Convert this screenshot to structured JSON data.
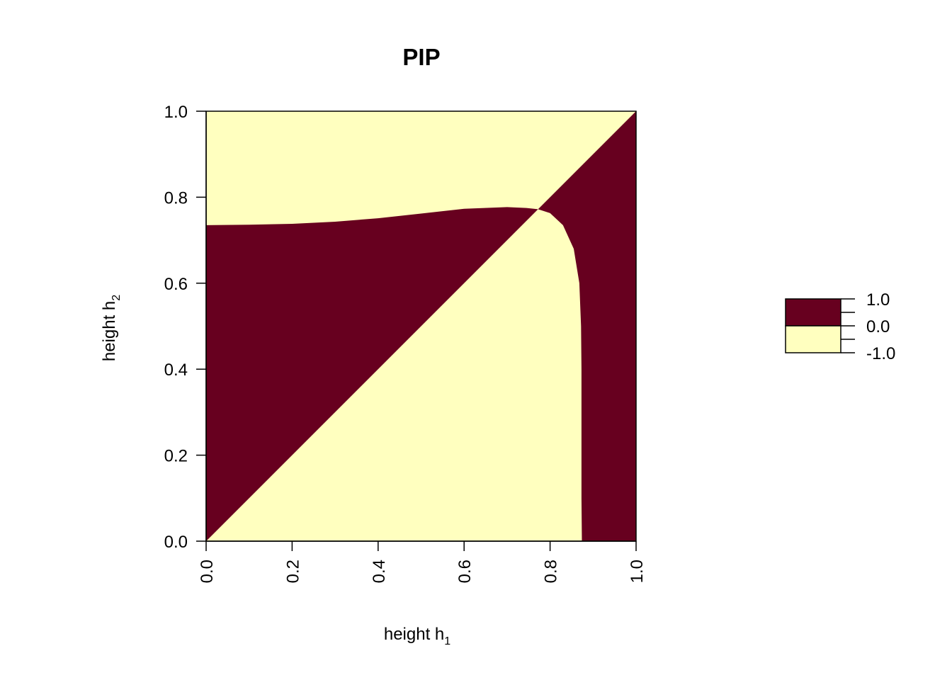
{
  "chart_data": {
    "type": "heatmap",
    "title": "PIP",
    "xlabel": {
      "text": "height h",
      "subscript": "1"
    },
    "ylabel": {
      "text": "height h",
      "subscript": "2"
    },
    "xlim": [
      0,
      1
    ],
    "ylim": [
      0,
      1
    ],
    "x_ticks": [
      {
        "value": 0.0,
        "label": "0.0"
      },
      {
        "value": 0.2,
        "label": "0.2"
      },
      {
        "value": 0.4,
        "label": "0.4"
      },
      {
        "value": 0.6,
        "label": "0.6"
      },
      {
        "value": 0.8,
        "label": "0.8"
      },
      {
        "value": 1.0,
        "label": "1.0"
      }
    ],
    "y_ticks": [
      {
        "value": 0.0,
        "label": "0.0"
      },
      {
        "value": 0.2,
        "label": "0.2"
      },
      {
        "value": 0.4,
        "label": "0.4"
      },
      {
        "value": 0.6,
        "label": "0.6"
      },
      {
        "value": 0.8,
        "label": "0.8"
      },
      {
        "value": 1.0,
        "label": "1.0"
      }
    ],
    "colors": {
      "positive": "#67001F",
      "negative": "#FFFFBF",
      "axis": "#000000"
    },
    "legend": {
      "placement": "right",
      "bins": [
        {
          "from": 0.0,
          "to": 1.0,
          "color": "#67001F"
        },
        {
          "from": -1.0,
          "to": 0.0,
          "color": "#FFFFBF"
        }
      ],
      "ticks": [
        {
          "value": 1.0,
          "label": "1.0"
        },
        {
          "value": 0.0,
          "label": "0.0"
        },
        {
          "value": -1.0,
          "label": "-1.0"
        }
      ]
    },
    "regions": [
      {
        "value": 1,
        "description": "upper-left: above diagonal, below top boundary",
        "polygon": [
          [
            0,
            0
          ],
          [
            0,
            0.735
          ],
          [
            0.1,
            0.736
          ],
          [
            0.2,
            0.738
          ],
          [
            0.3,
            0.743
          ],
          [
            0.4,
            0.751
          ],
          [
            0.5,
            0.762
          ],
          [
            0.6,
            0.773
          ],
          [
            0.7,
            0.777
          ],
          [
            0.745,
            0.775
          ],
          [
            0.772,
            0.772
          ],
          [
            0,
            0
          ]
        ]
      },
      {
        "value": 1,
        "description": "right: right of boundary, below diagonal",
        "polygon": [
          [
            0.874,
            0
          ],
          [
            1,
            0
          ],
          [
            1,
            1
          ],
          [
            0.772,
            0.772
          ],
          [
            0.8,
            0.763
          ],
          [
            0.83,
            0.735
          ],
          [
            0.855,
            0.68
          ],
          [
            0.868,
            0.6
          ],
          [
            0.872,
            0.5
          ],
          [
            0.873,
            0.4
          ],
          [
            0.873,
            0.3
          ],
          [
            0.873,
            0.2
          ],
          [
            0.873,
            0.1
          ],
          [
            0.874,
            0
          ]
        ]
      }
    ],
    "background_value": -1
  }
}
